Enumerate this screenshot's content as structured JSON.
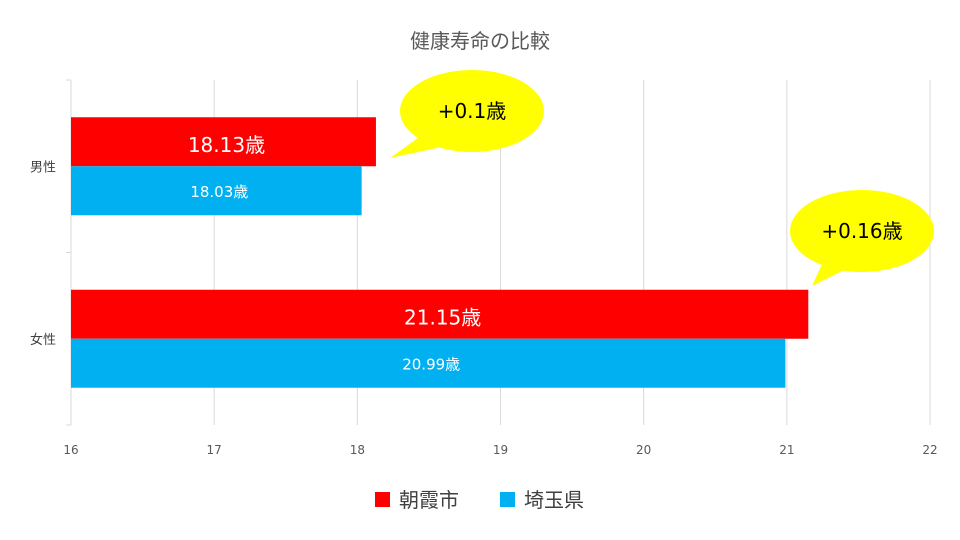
{
  "chart_data": {
    "type": "bar",
    "orientation": "horizontal",
    "title": "健康寿命の比較",
    "categories": [
      "男性",
      "女性"
    ],
    "series": [
      {
        "name": "朝霞市",
        "color": "#ff0000",
        "values": [
          18.13,
          21.15
        ],
        "labels": [
          "18.13歳",
          "21.15歳"
        ]
      },
      {
        "name": "埼玉県",
        "color": "#00b0f0",
        "values": [
          18.03,
          20.99
        ],
        "labels": [
          "18.03歳",
          "20.99歳"
        ]
      }
    ],
    "xlim": [
      16,
      22
    ],
    "xticks": [
      "16",
      "17",
      "18",
      "19",
      "20",
      "21",
      "22"
    ],
    "grid": true,
    "legend": "bottom",
    "annotations": [
      {
        "text": "+0.1歳",
        "category": "男性",
        "color": "#ffff00"
      },
      {
        "text": "+0.16歳",
        "category": "女性",
        "color": "#ffff00"
      }
    ]
  }
}
